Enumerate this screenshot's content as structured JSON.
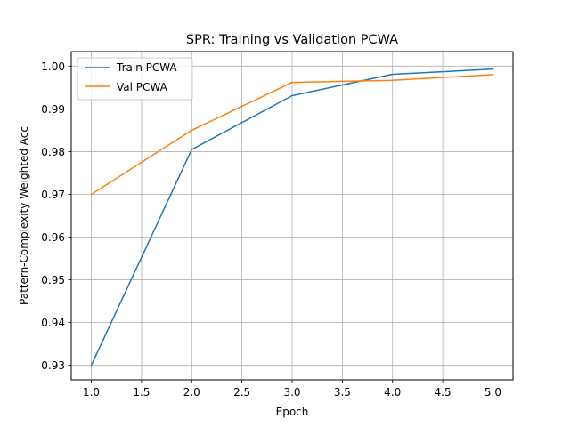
{
  "chart_data": {
    "type": "line",
    "title": "SPR: Training vs Validation PCWA",
    "xlabel": "Epoch",
    "ylabel": "Pattern-Complexity Weighted Acc",
    "xlim": [
      0.8,
      5.2
    ],
    "ylim": [
      0.9266,
      1.0034
    ],
    "xticks": [
      1.0,
      1.5,
      2.0,
      2.5,
      3.0,
      3.5,
      4.0,
      4.5,
      5.0
    ],
    "xtick_labels": [
      "1.0",
      "1.5",
      "2.0",
      "2.5",
      "3.0",
      "3.5",
      "4.0",
      "4.5",
      "5.0"
    ],
    "yticks": [
      0.93,
      0.94,
      0.95,
      0.96,
      0.97,
      0.98,
      0.99,
      1.0
    ],
    "ytick_labels": [
      "0.93",
      "0.94",
      "0.95",
      "0.96",
      "0.97",
      "0.98",
      "0.99",
      "1.00"
    ],
    "grid": true,
    "legend_position": "top-left",
    "x": [
      1,
      2,
      3,
      4,
      5
    ],
    "series": [
      {
        "name": "Train PCWA",
        "color": "#1f77b4",
        "values": [
          0.93,
          0.9805,
          0.9931,
          0.9981,
          0.9993
        ]
      },
      {
        "name": "Val PCWA",
        "color": "#ff7f0e",
        "values": [
          0.97,
          0.985,
          0.9962,
          0.9967,
          0.998
        ]
      }
    ]
  }
}
